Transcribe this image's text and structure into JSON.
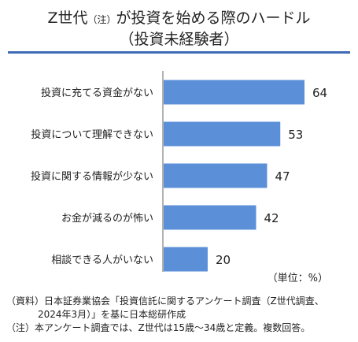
{
  "title": {
    "line1_main": "Z世代",
    "line1_note": "（注）",
    "line1_rest": "が投資を始める際のハードル",
    "line2": "（投資未経験者）"
  },
  "unit_label": "（単位：%）",
  "notes": {
    "source_1": "（資料）日本証券業協会「投資信託に関するアンケート調査（Z世代調査、",
    "source_2": "2024年3月）」を基に日本総研作成",
    "note": "（注）本アンケート調査では、Z世代は15歳～34歳と定義。複数回答。"
  },
  "colors": {
    "bar": "#5b8fd8",
    "rule": "#3f6ab5"
  },
  "chart_data": {
    "type": "bar",
    "orientation": "horizontal",
    "categories": [
      "投資に充てる資金がない",
      "投資について理解できない",
      "投資に関する情報が少ない",
      "お金が減るのが怖い",
      "相談できる人がいない"
    ],
    "values": [
      64,
      53,
      47,
      42,
      20
    ],
    "title": "Z世代（注）が投資を始める際のハードル（投資未経験者）",
    "xlabel": "",
    "ylabel": "",
    "unit": "%",
    "xlim": [
      0,
      70
    ],
    "grid": false,
    "legend": "none"
  }
}
